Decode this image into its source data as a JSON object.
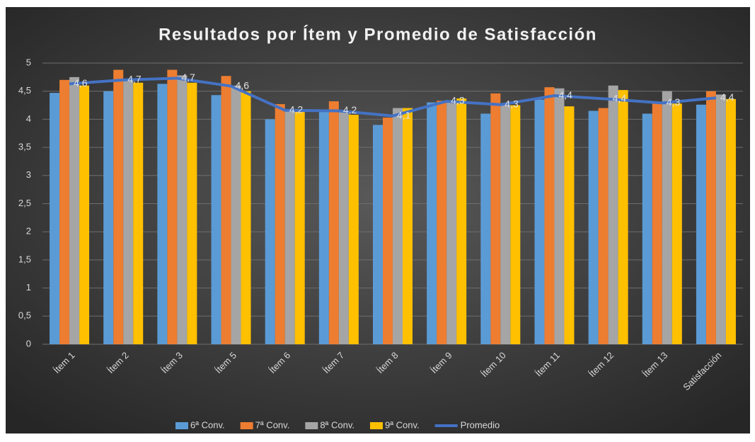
{
  "chart_data": {
    "type": "bar",
    "title": "Resultados por Ítem y Promedio de Satisfacción",
    "categories": [
      "Ítem 1",
      "Ítem 2",
      "Ítem 3",
      "Ítem 5",
      "Ítem 6",
      "Ítem 7",
      "Ítem 8",
      "Ítem 9",
      "Ítem 10",
      "Ítem 11",
      "Ítem 12",
      "Ítem 13",
      "Satisfacción"
    ],
    "series": [
      {
        "name": "6ª Conv.",
        "color": "#5b9bd5",
        "values": [
          4.47,
          4.5,
          4.63,
          4.43,
          4.0,
          4.13,
          3.9,
          4.3,
          4.1,
          4.35,
          4.15,
          4.1,
          4.26
        ]
      },
      {
        "name": "7ª Conv.",
        "color": "#ed7d31",
        "values": [
          4.7,
          4.88,
          4.88,
          4.77,
          4.27,
          4.32,
          4.03,
          4.33,
          4.46,
          4.57,
          4.2,
          4.3,
          4.5
        ]
      },
      {
        "name": "8ª Conv.",
        "color": "#a5a5a5",
        "values": [
          4.75,
          4.7,
          4.78,
          4.6,
          4.15,
          4.15,
          4.2,
          4.3,
          4.25,
          4.55,
          4.6,
          4.5,
          4.44
        ]
      },
      {
        "name": "9ª Conv.",
        "color": "#ffc000",
        "values": [
          4.6,
          4.65,
          4.65,
          4.5,
          4.13,
          4.08,
          4.2,
          4.37,
          4.25,
          4.23,
          4.52,
          4.28,
          4.36
        ]
      },
      {
        "name": "Promedio",
        "type": "line",
        "color": "#4472c4",
        "values": [
          4.63,
          4.7,
          4.73,
          4.59,
          4.16,
          4.15,
          4.06,
          4.32,
          4.26,
          4.42,
          4.36,
          4.29,
          4.38
        ],
        "value_labels": [
          "4,6",
          "4,7",
          "4,7",
          "4,6",
          "4,2",
          "4,2",
          "4,1",
          "4,3",
          "4,3",
          "4,4",
          "4,4",
          "4,3",
          "4,4"
        ]
      }
    ],
    "ylim": [
      0,
      5
    ],
    "yticks": [
      0,
      {
        "value": 0.5,
        "label": "0,5"
      },
      1,
      {
        "value": 1.5,
        "label": "1,5"
      },
      2,
      {
        "value": 2.5,
        "label": "2,5"
      },
      3,
      {
        "value": 3.5,
        "label": "3,5"
      },
      4,
      {
        "value": 4.5,
        "label": "4,5"
      },
      5
    ],
    "grid": true,
    "legend": "bottom"
  }
}
